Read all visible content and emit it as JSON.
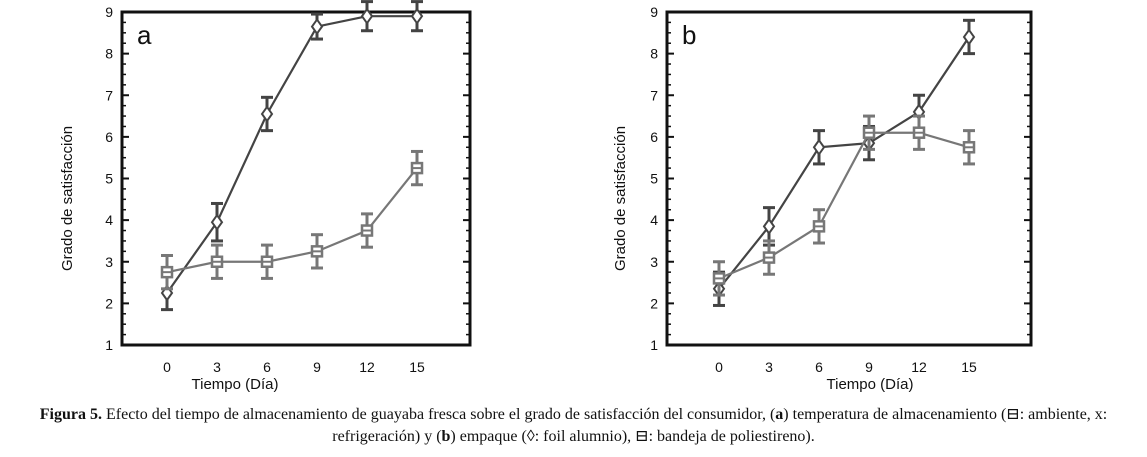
{
  "chart_data": [
    {
      "type": "line",
      "panel_label": "a",
      "xlabel": "Tiempo (Día)",
      "ylabel": "Grado de satisfacción",
      "x": [
        0,
        3,
        6,
        9,
        12,
        15
      ],
      "xticks": [
        "0",
        "3",
        "6",
        "9",
        "12",
        "15"
      ],
      "yticks": [
        "1",
        "2",
        "3",
        "4",
        "5",
        "6",
        "7",
        "8",
        "9"
      ],
      "ylim": [
        1,
        9
      ],
      "series": [
        {
          "marker": "diamond",
          "color": "#444444",
          "values": [
            2.25,
            3.95,
            6.55,
            8.65,
            8.9,
            8.9
          ],
          "errors": [
            0.4,
            0.45,
            0.4,
            0.3,
            0.35,
            0.35
          ]
        },
        {
          "marker": "square",
          "color": "#777777",
          "values": [
            2.75,
            3.0,
            3.0,
            3.25,
            3.75,
            5.25
          ],
          "errors": [
            0.4,
            0.4,
            0.4,
            0.4,
            0.4,
            0.4
          ]
        }
      ]
    },
    {
      "type": "line",
      "panel_label": "b",
      "xlabel": "Tiempo (Día)",
      "ylabel": "Grado de satisfacción",
      "x": [
        0,
        3,
        6,
        9,
        12,
        15
      ],
      "xticks": [
        "0",
        "3",
        "6",
        "9",
        "12",
        "15"
      ],
      "yticks": [
        "1",
        "2",
        "3",
        "4",
        "5",
        "6",
        "7",
        "8",
        "9"
      ],
      "ylim": [
        1,
        9
      ],
      "series": [
        {
          "marker": "diamond",
          "color": "#444444",
          "values": [
            2.35,
            3.85,
            5.75,
            5.85,
            6.6,
            8.4
          ],
          "errors": [
            0.4,
            0.45,
            0.4,
            0.4,
            0.4,
            0.4
          ]
        },
        {
          "marker": "square",
          "color": "#777777",
          "values": [
            2.6,
            3.1,
            3.85,
            6.1,
            6.1,
            5.75
          ],
          "errors": [
            0.4,
            0.4,
            0.4,
            0.4,
            0.4,
            0.4
          ]
        }
      ]
    }
  ],
  "caption": {
    "lead": "Figura 5.",
    "part1": " Efecto del tiempo de almacenamiento de guayaba fresca sobre el grado de satisfacción del consumidor, (",
    "bold_a": "a",
    "part2": ") temperatura de almacenamiento (",
    "symbol_square_1": "⊟",
    "part3": ": ambiente, x: refrigeración) y (",
    "bold_b": "b",
    "part4": ") empaque (◊: foil alumnio), ",
    "symbol_square_2": "⊟",
    "part5": ": bandeja de poliestireno)."
  }
}
